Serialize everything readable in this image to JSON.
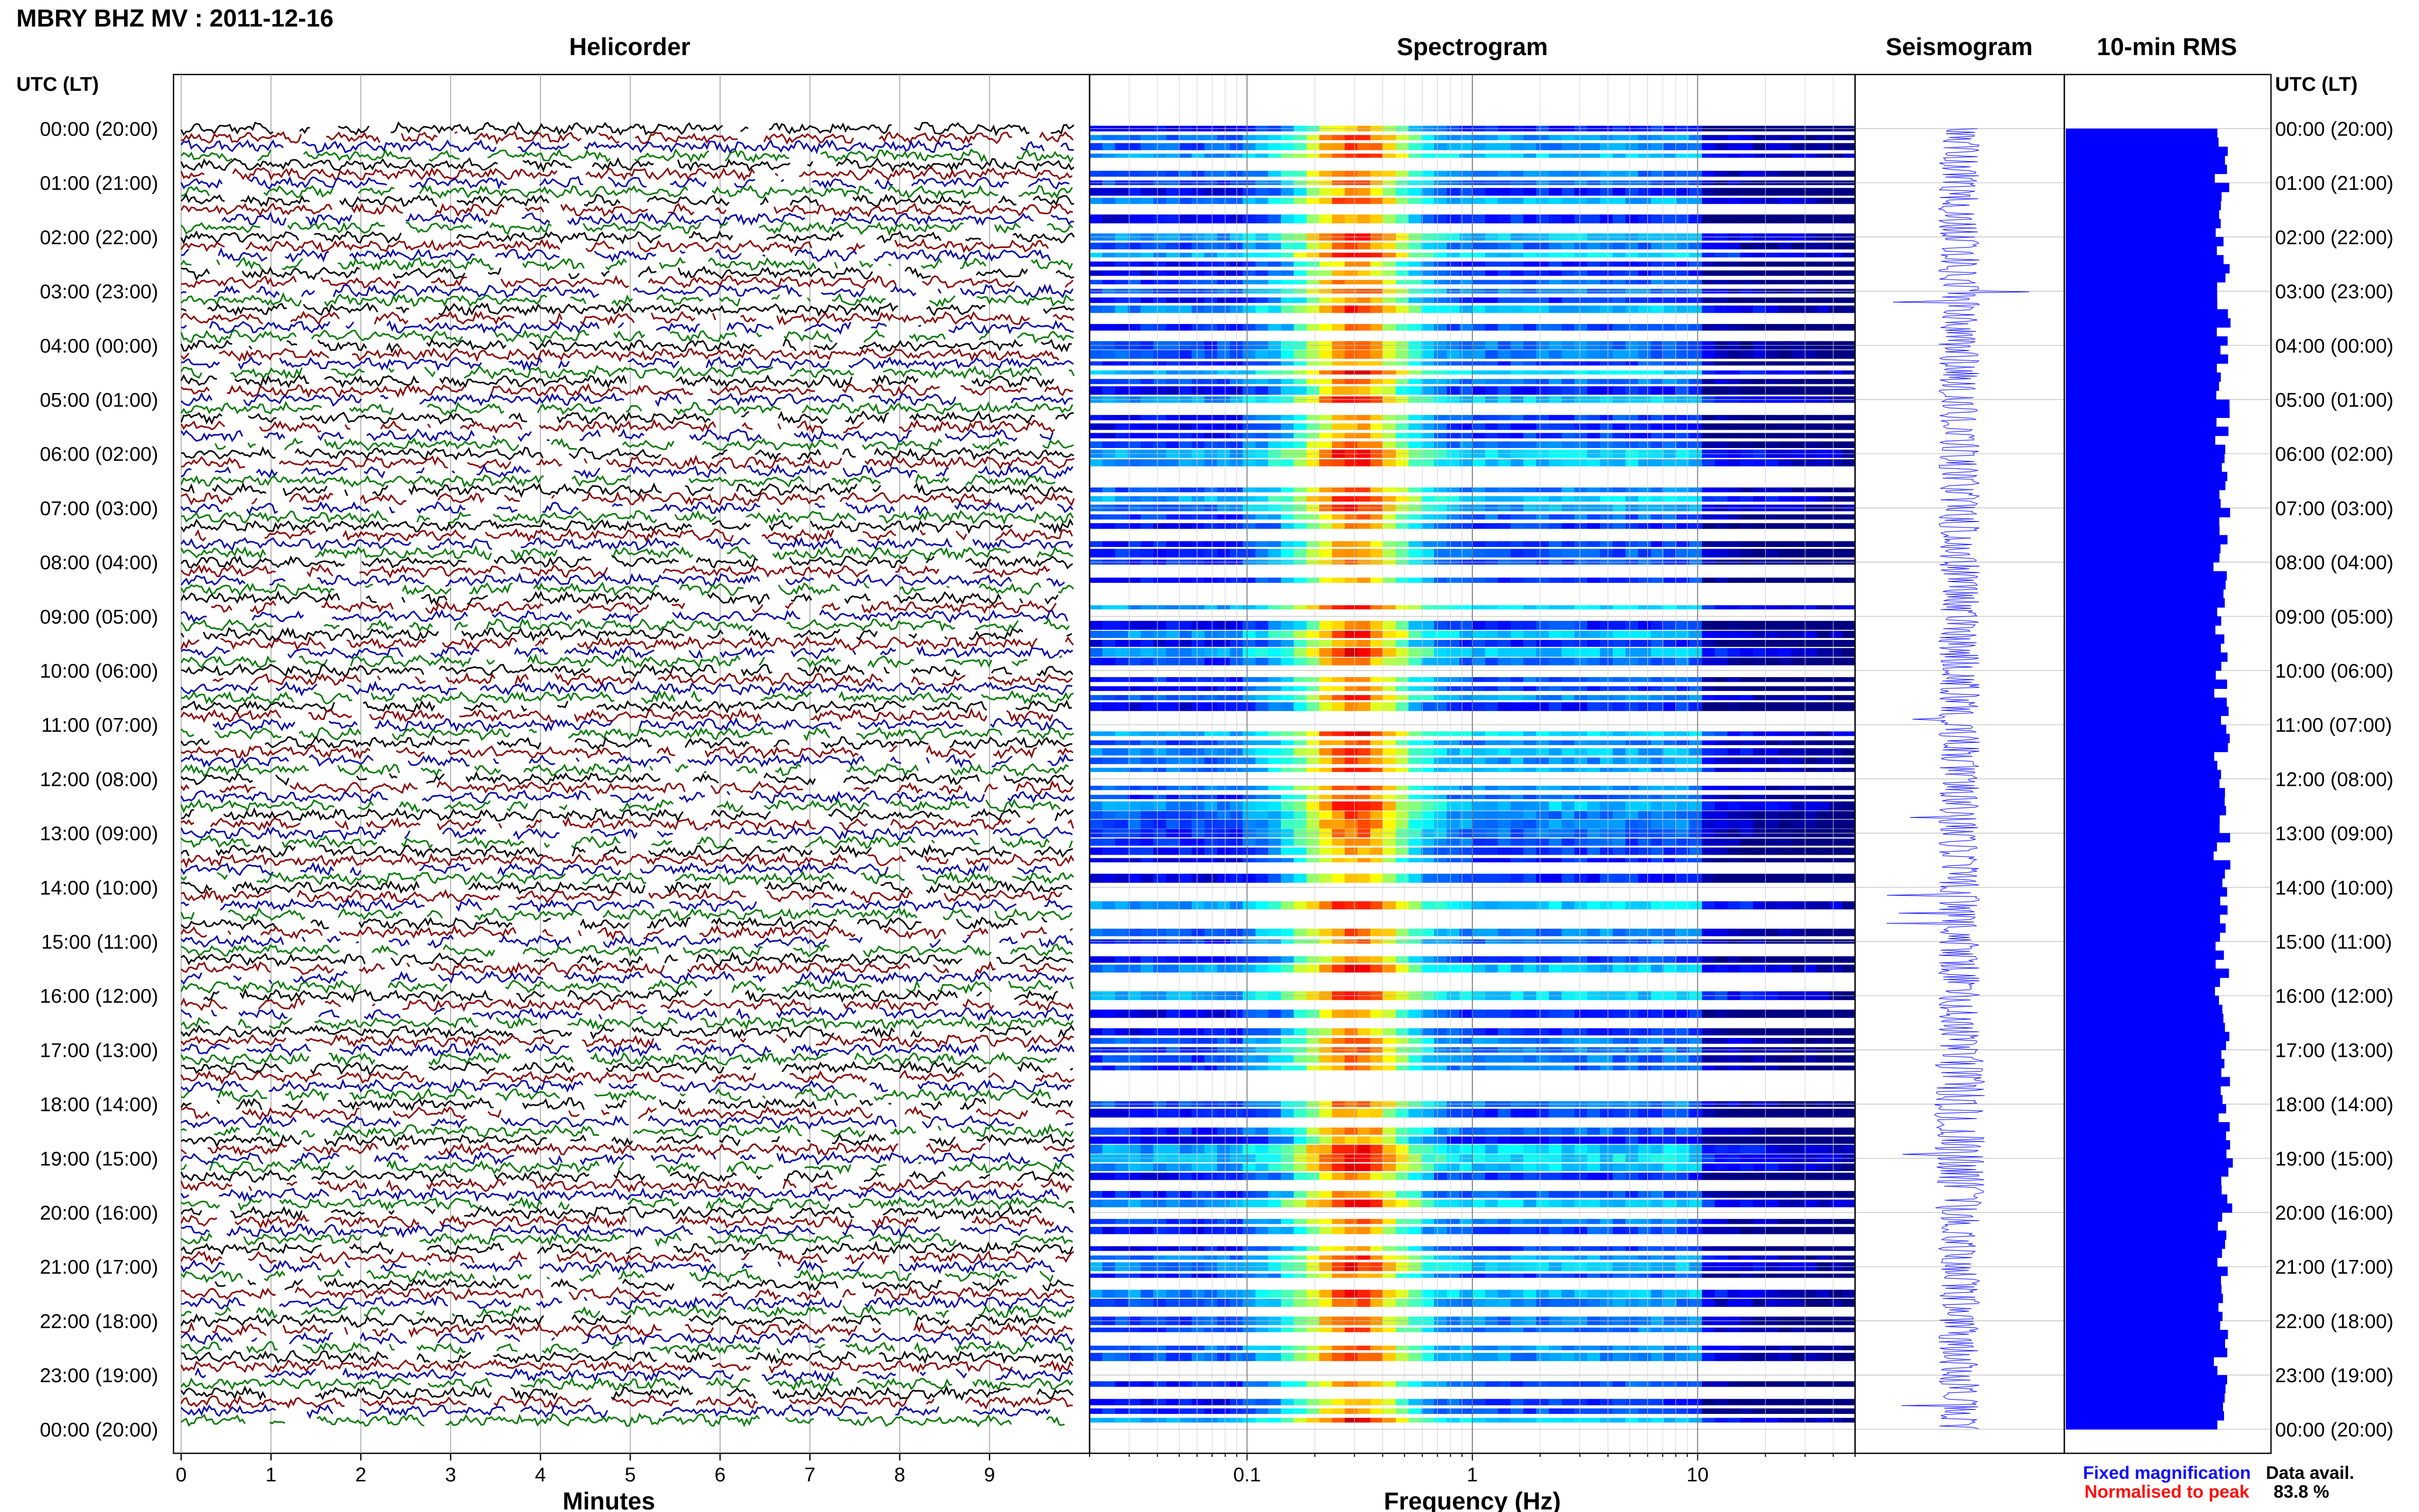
{
  "header": {
    "title": "MBRY BHZ MV : 2011-12-16"
  },
  "panels": {
    "helicorder_title": "Helicorder",
    "spectrogram_title": "Spectrogram",
    "seismogram_title": "Seismogram",
    "rms_title": "10-min RMS"
  },
  "axis_header_left": "UTC (LT)",
  "axis_header_right": "UTC (LT)",
  "row_labels": [
    "00:00 (20:00)",
    "01:00 (21:00)",
    "02:00 (22:00)",
    "03:00 (23:00)",
    "04:00 (00:00)",
    "05:00 (01:00)",
    "06:00 (02:00)",
    "07:00 (03:00)",
    "08:00 (04:00)",
    "09:00 (05:00)",
    "10:00 (06:00)",
    "11:00 (07:00)",
    "12:00 (08:00)",
    "13:00 (09:00)",
    "14:00 (10:00)",
    "15:00 (11:00)",
    "16:00 (12:00)",
    "17:00 (13:00)",
    "18:00 (14:00)",
    "19:00 (15:00)",
    "20:00 (16:00)",
    "21:00 (17:00)",
    "22:00 (18:00)",
    "23:00 (19:00)",
    "00:00 (20:00)"
  ],
  "legend": {
    "fixed": "Fixed magnification",
    "normalised": "Normalised to peak",
    "fixed_color": "#1010ff",
    "normalised_color": "#ff1010"
  },
  "data_availability": {
    "label": "Data avail.",
    "value": "83.8 %"
  },
  "colors": {
    "helicorder_traces": [
      "#000000",
      "#8b0000",
      "#0000aa",
      "#007a00"
    ],
    "seismogram": "#1a1aff",
    "rms": "#0000ff"
  },
  "chart_data": [
    {
      "type": "line",
      "panel": "Helicorder",
      "xlabel": "Minutes",
      "x_ticks": [
        "0",
        "1",
        "2",
        "3",
        "4",
        "5",
        "6",
        "7",
        "8",
        "9"
      ],
      "xlim": [
        0,
        10
      ],
      "trace_colors_cycle": [
        "black",
        "dark-red",
        "blue",
        "green"
      ],
      "rows": "24 hours, 6 traces per hour (10-min lines)"
    },
    {
      "type": "heatmap",
      "panel": "Spectrogram",
      "xlabel": "Frequency (Hz)",
      "x_ticks": [
        "0.1",
        "1",
        "10"
      ],
      "x_scale": "log",
      "xlim": [
        0.02,
        50
      ],
      "peak_band_hz": [
        0.18,
        0.5
      ],
      "colormap": "jet"
    },
    {
      "type": "line",
      "panel": "Seismogram",
      "description_of_scale": "Fixed magnification"
    },
    {
      "type": "bar",
      "panel": "10-min RMS",
      "orientation": "horizontal",
      "interval_minutes": 10,
      "rows": 144,
      "values_relative": "near-constant, approx 0.8-0.95 of panel width, slightly larger after 18:00"
    }
  ]
}
